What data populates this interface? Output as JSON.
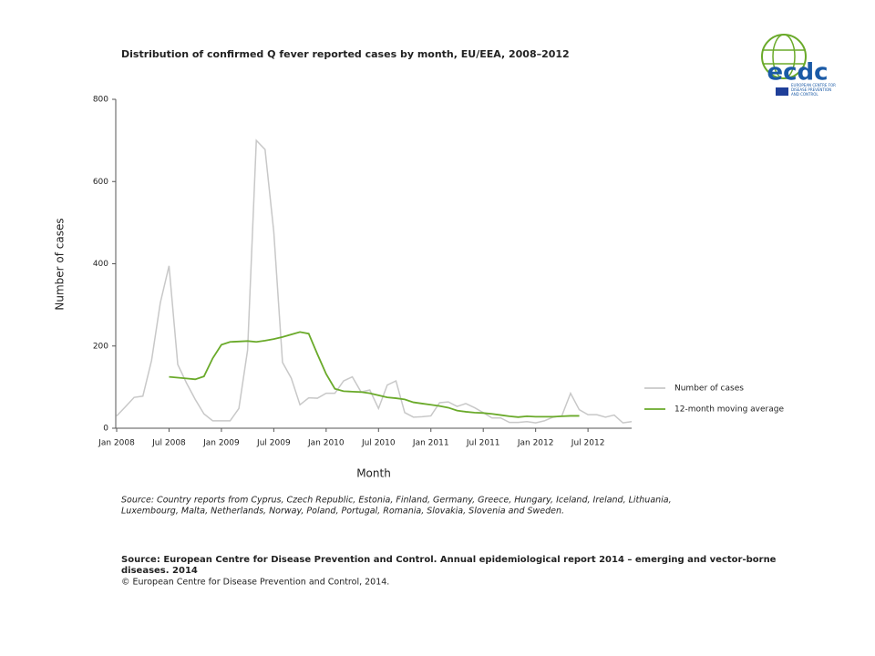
{
  "chart_data": {
    "type": "line",
    "title": "Distribution  of confirmed  Q fever reported cases by month, EU/EEA,  2008–2012",
    "y_label": "Number of cases",
    "x_label": "Month",
    "categories": [
      "Jan 2008",
      null,
      null,
      null,
      null,
      null,
      "Jul 2008",
      null,
      null,
      null,
      null,
      null,
      "Jan 2009",
      null,
      null,
      null,
      null,
      null,
      "Jul 2009",
      null,
      null,
      null,
      null,
      null,
      "Jan 2010",
      null,
      null,
      null,
      null,
      null,
      "Jul 2010",
      null,
      null,
      null,
      null,
      null,
      "Jan 2011",
      null,
      null,
      null,
      null,
      null,
      "Jul 2011",
      null,
      null,
      null,
      null,
      null,
      "Jan 2012",
      null,
      null,
      null,
      null,
      null,
      "Jul 2012",
      null,
      null,
      null,
      null,
      null
    ],
    "series": [
      {
        "name": "Number of cases",
        "color": "#c8c8c8",
        "values": [
          30,
          52,
          75,
          78,
          165,
          305,
          395,
          155,
          110,
          70,
          35,
          18,
          18,
          18,
          48,
          190,
          700,
          678,
          478,
          160,
          122,
          57,
          74,
          73,
          85,
          85,
          115,
          125,
          88,
          93,
          48,
          105,
          115,
          38,
          27,
          28,
          30,
          62,
          64,
          53,
          60,
          50,
          38,
          25,
          25,
          14,
          14,
          16,
          13,
          18,
          27,
          30,
          85,
          45,
          33,
          33,
          27,
          32,
          13,
          16
        ]
      },
      {
        "name": "12-month moving average",
        "color": "#6aaa2a",
        "values": [
          null,
          null,
          null,
          null,
          null,
          null,
          125,
          123,
          121,
          119,
          126,
          170,
          203,
          210,
          211,
          212,
          210,
          213,
          217,
          222,
          228,
          234,
          230,
          180,
          132,
          96,
          90,
          89,
          88,
          85,
          80,
          75,
          73,
          70,
          63,
          60,
          57,
          54,
          50,
          43,
          40,
          38,
          37,
          35,
          32,
          29,
          27,
          29,
          28,
          28,
          28,
          29,
          30,
          30,
          null,
          null,
          null,
          null,
          null,
          null
        ]
      }
    ],
    "ylim": [
      0,
      800
    ],
    "yticks": [
      0,
      200,
      400,
      600,
      800
    ],
    "grid": false,
    "legend": "right",
    "source_note": [
      "Source: Country reports from Cyprus, Czech Republic, Estonia, Finland, Germany, Greece, Hungary, Iceland, Ireland, Lithuania,",
      "Luxembourg, Malta, Netherlands, Norway, Poland, Portugal, Romania, Slovakia, Slovenia and Sweden."
    ],
    "citation": [
      "Source: European Centre for Disease Prevention and Control.  Annual epidemiological report 2014 – emerging and vector-borne",
      "diseases. 2014"
    ],
    "copyright": "© European Centre for Disease Prevention and Control, 2014."
  },
  "logo": {
    "text": "ecdc",
    "caption": [
      "EUROPEAN CENTRE FOR",
      "DISEASE PREVENTION",
      "AND CONTROL"
    ]
  }
}
